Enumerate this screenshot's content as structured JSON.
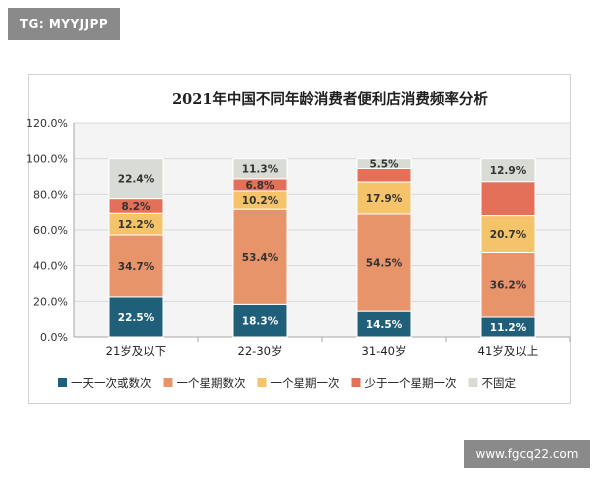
{
  "badge": "TG: MYYJJPP",
  "watermark": "www.fgcq22.com",
  "colors": {
    "series": [
      "#1f5f7a",
      "#e8946a",
      "#f5c36a",
      "#e4705a",
      "#d8dcd5"
    ],
    "grid": "#d9d9d9",
    "axis": "#a6a6a6"
  },
  "chart_data": {
    "type": "bar",
    "stacked": true,
    "title": "2021年中国不同年龄消费者便利店消费频率分析",
    "categories": [
      "21岁及以下",
      "22-30岁",
      "31-40岁",
      "41岁及以上"
    ],
    "series": [
      {
        "name": "一天一次或数次",
        "values": [
          22.5,
          18.3,
          14.5,
          11.2
        ],
        "labels": [
          "22.5%",
          "18.3%",
          "14.5%",
          "11.2%"
        ]
      },
      {
        "name": "一个星期数次",
        "values": [
          34.7,
          53.4,
          54.5,
          36.2
        ],
        "labels": [
          "34.7%",
          "53.4%",
          "54.5%",
          "36.2%"
        ]
      },
      {
        "name": "一个星期一次",
        "values": [
          12.2,
          10.2,
          17.9,
          20.7
        ],
        "labels": [
          "12.2%",
          "10.2%",
          "17.9%",
          "20.7%"
        ]
      },
      {
        "name": "少于一个星期一次",
        "values": [
          8.2,
          6.8,
          7.6,
          19.0
        ],
        "labels": [
          "8.2%",
          "6.8%",
          "",
          ""
        ]
      },
      {
        "name": "不固定",
        "values": [
          22.4,
          11.3,
          5.5,
          12.9
        ],
        "labels": [
          "22.4%",
          "11.3%",
          "5.5%",
          "12.9%"
        ]
      }
    ],
    "y_ticks": [
      "0.0%",
      "20.0%",
      "40.0%",
      "60.0%",
      "80.0%",
      "100.0%",
      "120.0%"
    ],
    "ylim": [
      0,
      120
    ],
    "grid": true,
    "legend_position": "bottom"
  }
}
